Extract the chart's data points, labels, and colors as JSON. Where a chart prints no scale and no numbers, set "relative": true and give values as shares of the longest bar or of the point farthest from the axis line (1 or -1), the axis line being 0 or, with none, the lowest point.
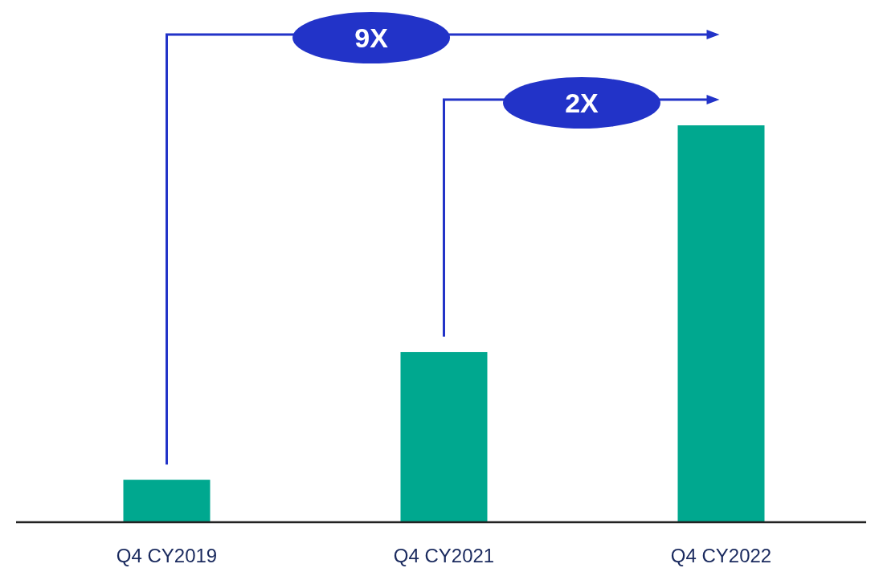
{
  "chart_data": {
    "type": "bar",
    "relative": true,
    "categories": [
      "Q4 CY2019",
      "Q4 CY2021",
      "Q4 CY2022"
    ],
    "values": [
      0.107,
      0.429,
      1
    ],
    "color": "#00a88f",
    "annotations": [
      "9X",
      "2X"
    ]
  }
}
